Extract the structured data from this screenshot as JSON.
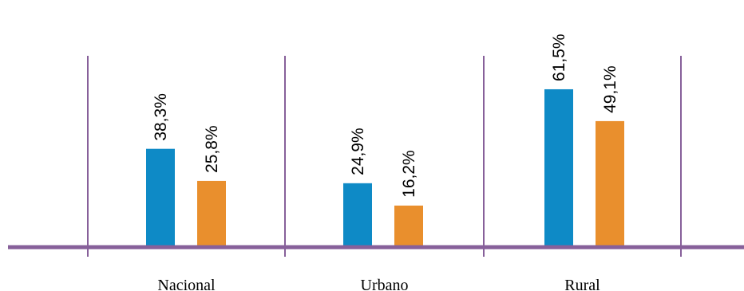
{
  "colors": {
    "axis": "#87609a",
    "series": [
      "#0e8ac6",
      "#e98f2d"
    ]
  },
  "chart_data": {
    "type": "bar",
    "title": "",
    "xlabel": "",
    "ylabel": "",
    "categories": [
      "Nacional",
      "Urbano",
      "Rural"
    ],
    "series": [
      {
        "values": [
          38.3,
          24.9,
          61.5
        ],
        "labels": [
          "38,3%",
          "24,9%",
          "61,5%"
        ]
      },
      {
        "values": [
          25.8,
          16.2,
          49.1
        ],
        "labels": [
          "25,8%",
          "16,2%",
          "49,1%"
        ]
      }
    ],
    "ylim": [
      0,
      100
    ],
    "grid": false,
    "legend": "none"
  }
}
